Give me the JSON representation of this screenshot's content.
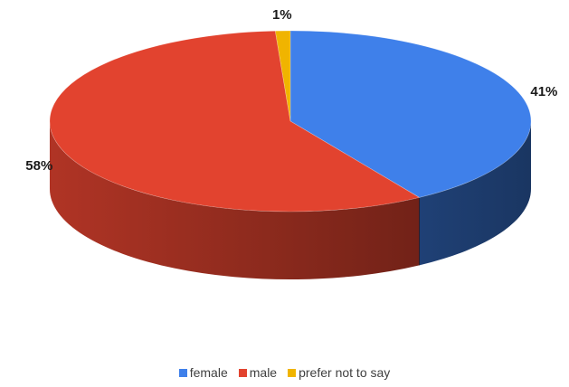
{
  "chart_data": {
    "type": "pie",
    "style": "3d",
    "slices": [
      {
        "label": "female",
        "value": 41,
        "display": "41%",
        "color": "#3f80ea"
      },
      {
        "label": "male",
        "value": 58,
        "display": "58%",
        "color": "#e2432f"
      },
      {
        "label": "prefer not to say",
        "value": 1,
        "display": "1%",
        "color": "#f0b400"
      }
    ],
    "legend_position": "bottom"
  }
}
